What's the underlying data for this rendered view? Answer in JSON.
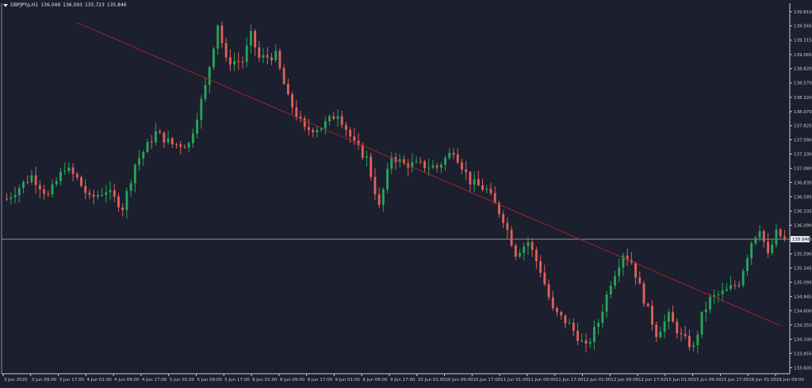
{
  "header": {
    "symbol": "GBPJPYp,H1",
    "open": "136.049",
    "high": "136.093",
    "low": "135.723",
    "close": "135.846"
  },
  "colors": {
    "background": "#1b1f2e",
    "bull": "#26a65b",
    "bear": "#e0605a",
    "trendline": "#a3242b",
    "price_line": "#9aa0a6",
    "text": "#e6e6e6",
    "axis": "#cfcfcf"
  },
  "chart_data": {
    "type": "candlestick",
    "ylim": [
      133.5,
      139.96
    ],
    "y_ticks": [
      "139.810",
      "139.565",
      "139.315",
      "139.065",
      "138.820",
      "138.570",
      "138.320",
      "138.070",
      "137.825",
      "137.580",
      "137.330",
      "137.080",
      "136.835",
      "136.585",
      "136.335",
      "136.090",
      "135.845",
      "135.590",
      "135.345",
      "135.095",
      "134.845",
      "134.600",
      "134.350",
      "134.100",
      "133.855",
      "133.605"
    ],
    "x_labels": [
      "3 Jun 2020",
      "3 Jun 09:00",
      "3 Jun 17:00",
      "4 Jun 01:00",
      "4 Jun 09:00",
      "4 Jun 17:00",
      "5 Jun 01:00",
      "5 Jun 09:00",
      "5 Jun 17:00",
      "8 Jun 01:00",
      "8 Jun 09:00",
      "8 Jun 17:00",
      "9 Jun 01:00",
      "9 Jun 09:00",
      "9 Jun 17:00",
      "10 Jun 01:00",
      "10 Jun 09:00",
      "10 Jun 17:00",
      "11 Jun 01:00",
      "11 Jun 09:00",
      "11 Jun 17:00",
      "12 Jun 01:00",
      "12 Jun 09:00",
      "12 Jun 17:00",
      "15 Jun 01:00",
      "15 Jun 09:00",
      "15 Jun 17:00",
      "16 Jun 01:00",
      "16 Jun 09:00"
    ],
    "current_price_label": "135.846",
    "current_price": 135.846,
    "candles": [],
    "trendline": {
      "start": [
        17,
        139.62
      ],
      "end": [
        187,
        134.34
      ]
    },
    "anchors": [
      [
        0,
        136.55
      ],
      [
        3,
        136.75
      ],
      [
        6,
        136.95
      ],
      [
        10,
        136.6
      ],
      [
        14,
        137.1
      ],
      [
        17,
        136.9
      ],
      [
        20,
        136.55
      ],
      [
        24,
        136.7
      ],
      [
        28,
        136.4
      ],
      [
        31,
        137.15
      ],
      [
        36,
        137.7
      ],
      [
        40,
        137.5
      ],
      [
        44,
        137.5
      ],
      [
        48,
        138.5
      ],
      [
        51,
        139.6
      ],
      [
        53,
        138.95
      ],
      [
        57,
        138.95
      ],
      [
        59,
        139.4
      ],
      [
        61,
        139.0
      ],
      [
        65,
        139.05
      ],
      [
        68,
        138.3
      ],
      [
        72,
        137.75
      ],
      [
        76,
        137.8
      ],
      [
        80,
        138.05
      ],
      [
        84,
        137.5
      ],
      [
        87,
        137.25
      ],
      [
        90,
        136.4
      ],
      [
        93,
        137.3
      ],
      [
        96,
        137.15
      ],
      [
        99,
        137.15
      ],
      [
        104,
        137.1
      ],
      [
        108,
        137.4
      ],
      [
        112,
        136.85
      ],
      [
        116,
        136.7
      ],
      [
        120,
        136.2
      ],
      [
        123,
        135.6
      ],
      [
        126,
        135.8
      ],
      [
        129,
        135.3
      ],
      [
        132,
        134.6
      ],
      [
        136,
        134.35
      ],
      [
        140,
        133.95
      ],
      [
        143,
        134.4
      ],
      [
        146,
        135.1
      ],
      [
        149,
        135.6
      ],
      [
        151,
        135.45
      ],
      [
        154,
        134.8
      ],
      [
        157,
        134.2
      ],
      [
        160,
        134.5
      ],
      [
        163,
        134.15
      ],
      [
        166,
        133.95
      ],
      [
        168,
        134.5
      ],
      [
        170,
        134.8
      ],
      [
        174,
        134.95
      ],
      [
        177,
        135.1
      ],
      [
        180,
        135.8
      ],
      [
        182,
        136.05
      ],
      [
        184,
        135.55
      ],
      [
        186,
        135.95
      ],
      [
        188,
        135.85
      ]
    ]
  }
}
